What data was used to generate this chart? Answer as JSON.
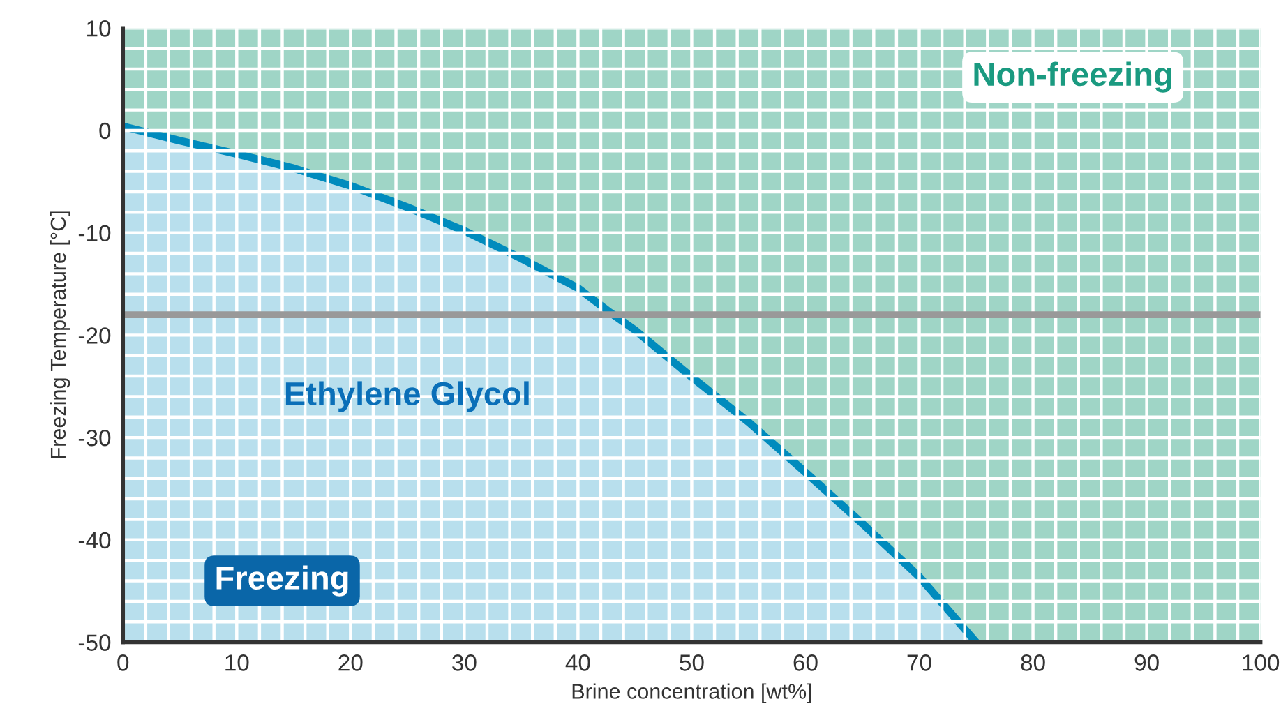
{
  "chart_data": {
    "type": "area",
    "xlabel": "Brine concentration [wt%]",
    "ylabel": "Freezing Temperature [°C]",
    "x": [
      0,
      5,
      10,
      15,
      20,
      25,
      30,
      35,
      40,
      42.6,
      45,
      50,
      55,
      60,
      65,
      70,
      75
    ],
    "series": [
      {
        "name": "Ethylene Glycol",
        "color": "#008bbd",
        "values": [
          0.4,
          -1.0,
          -2.3,
          -3.7,
          -5.4,
          -7.5,
          -9.8,
          -12.5,
          -15.4,
          -17.6,
          -19.5,
          -24.1,
          -28.5,
          -33.4,
          -38.4,
          -43.6,
          -50
        ]
      }
    ],
    "xlim": [
      0,
      100
    ],
    "ylim": [
      -50,
      10
    ],
    "xticks": [
      0,
      10,
      20,
      30,
      40,
      50,
      60,
      70,
      80,
      90,
      100
    ],
    "yticks": [
      -50,
      -40,
      -30,
      -20,
      -10,
      0,
      10
    ],
    "ref_lines": [
      {
        "axis": "y",
        "value": -18,
        "color": "#999999"
      }
    ],
    "annotations": [
      "Non-freezing",
      "Freezing"
    ],
    "grid": true,
    "legend": false
  }
}
